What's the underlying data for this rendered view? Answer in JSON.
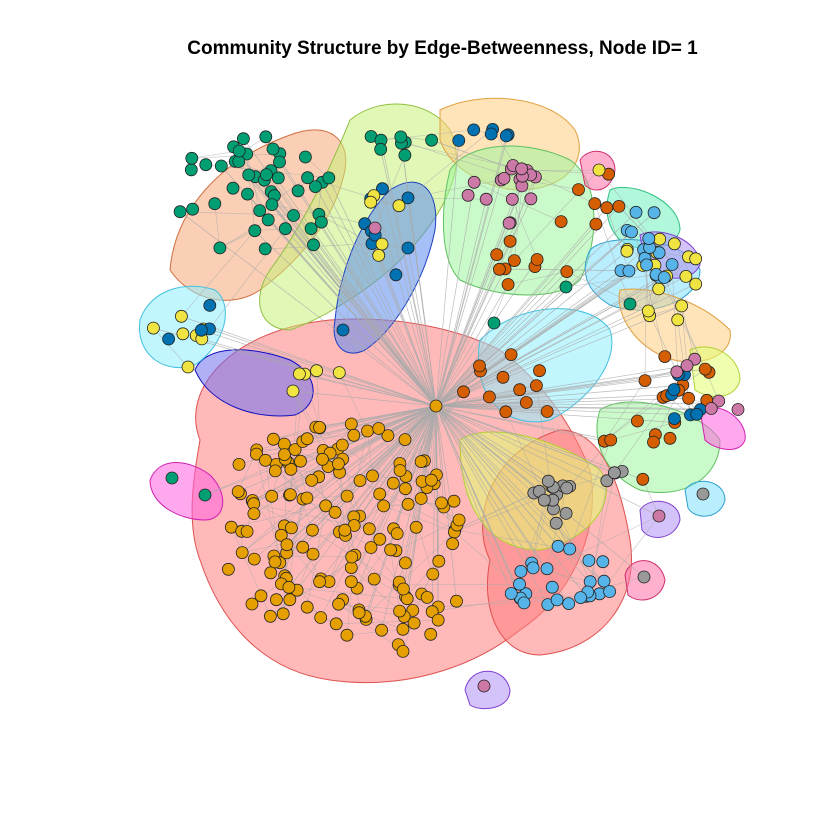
{
  "title": "Community Structure by Edge-Betweenness, Node ID= 1",
  "palette": {
    "orange": "#E69F00",
    "teal": "#009E73",
    "blue": "#0072B2",
    "yellow": "#F0E442",
    "pink": "#CC79A7",
    "vermillion": "#D55E00",
    "skyblue": "#56B4E9",
    "gray": "#999999",
    "edge": "#aaaaaa"
  },
  "communities": [
    {
      "fill": "#FF7F7F",
      "stroke": "#E05050"
    },
    {
      "fill": "#F5A878",
      "stroke": "#D07040"
    },
    {
      "fill": "#C8F07A",
      "stroke": "#90C040"
    },
    {
      "fill": "#FFCC80",
      "stroke": "#E0A040"
    },
    {
      "fill": "#9FF59F",
      "stroke": "#60C060"
    },
    {
      "fill": "#8FEFFF",
      "stroke": "#40C0E0"
    },
    {
      "fill": "#5A8CF0",
      "stroke": "#2040C0"
    },
    {
      "fill": "#7070F0",
      "stroke": "#1010C0"
    },
    {
      "fill": "#FF60E0",
      "stroke": "#D020B0"
    },
    {
      "fill": "#E0FF70",
      "stroke": "#B0D030"
    },
    {
      "fill": "#B090F5",
      "stroke": "#8040D0"
    },
    {
      "fill": "#FF70A8",
      "stroke": "#D03070"
    },
    {
      "fill": "#80E0FF",
      "stroke": "#30A0D0"
    },
    {
      "fill": "#70F0C0",
      "stroke": "#30C080"
    }
  ]
}
